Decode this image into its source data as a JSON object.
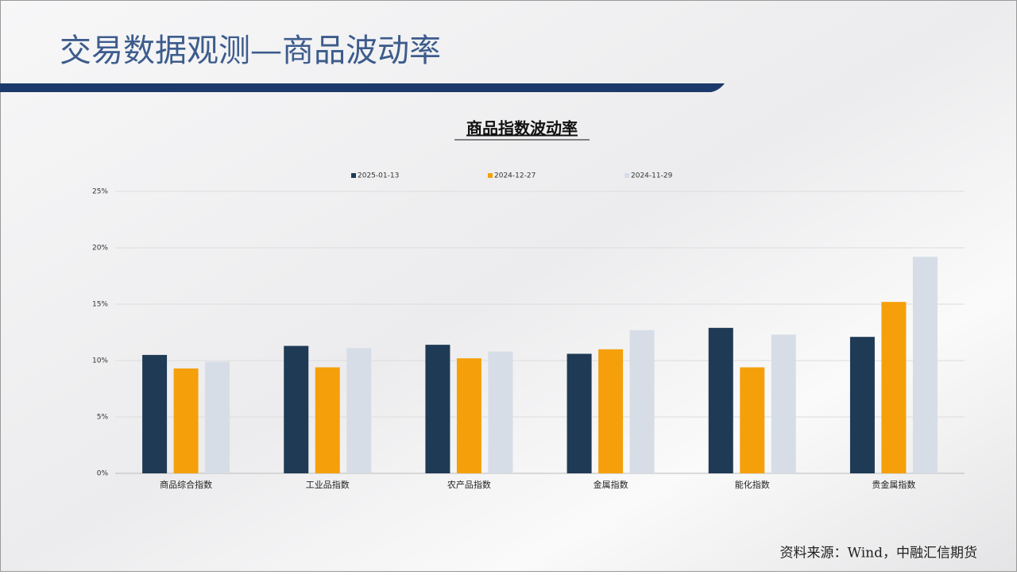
{
  "header": {
    "title": "交易数据观测—商品波动率"
  },
  "chart_data": {
    "type": "bar",
    "title": "商品指数波动率",
    "categories": [
      "商品综合指数",
      "工业品指数",
      "农产品指数",
      "金属指数",
      "能化指数",
      "贵金属指数"
    ],
    "series": [
      {
        "name": "2025-01-13",
        "color": "#1f3a54",
        "values": [
          10.5,
          11.3,
          11.4,
          10.6,
          12.9,
          12.1
        ]
      },
      {
        "name": "2024-12-27",
        "color": "#f5a00a",
        "values": [
          9.3,
          9.4,
          10.2,
          11.0,
          9.4,
          15.2
        ]
      },
      {
        "name": "2024-11-29",
        "color": "#d6dde6",
        "values": [
          9.9,
          11.1,
          10.8,
          12.7,
          12.3,
          19.2
        ]
      }
    ],
    "ylim": [
      0,
      25
    ],
    "yticks": [
      {
        "value": 0,
        "label": "0%"
      },
      {
        "value": 5,
        "label": "5%"
      },
      {
        "value": 10,
        "label": "10%"
      },
      {
        "value": 15,
        "label": "15%"
      },
      {
        "value": 20,
        "label": "20%"
      },
      {
        "value": 25,
        "label": "25%"
      }
    ],
    "grid": true,
    "legend": "top"
  },
  "footer": {
    "source": "资料来源：Wind，中融汇信期货"
  }
}
